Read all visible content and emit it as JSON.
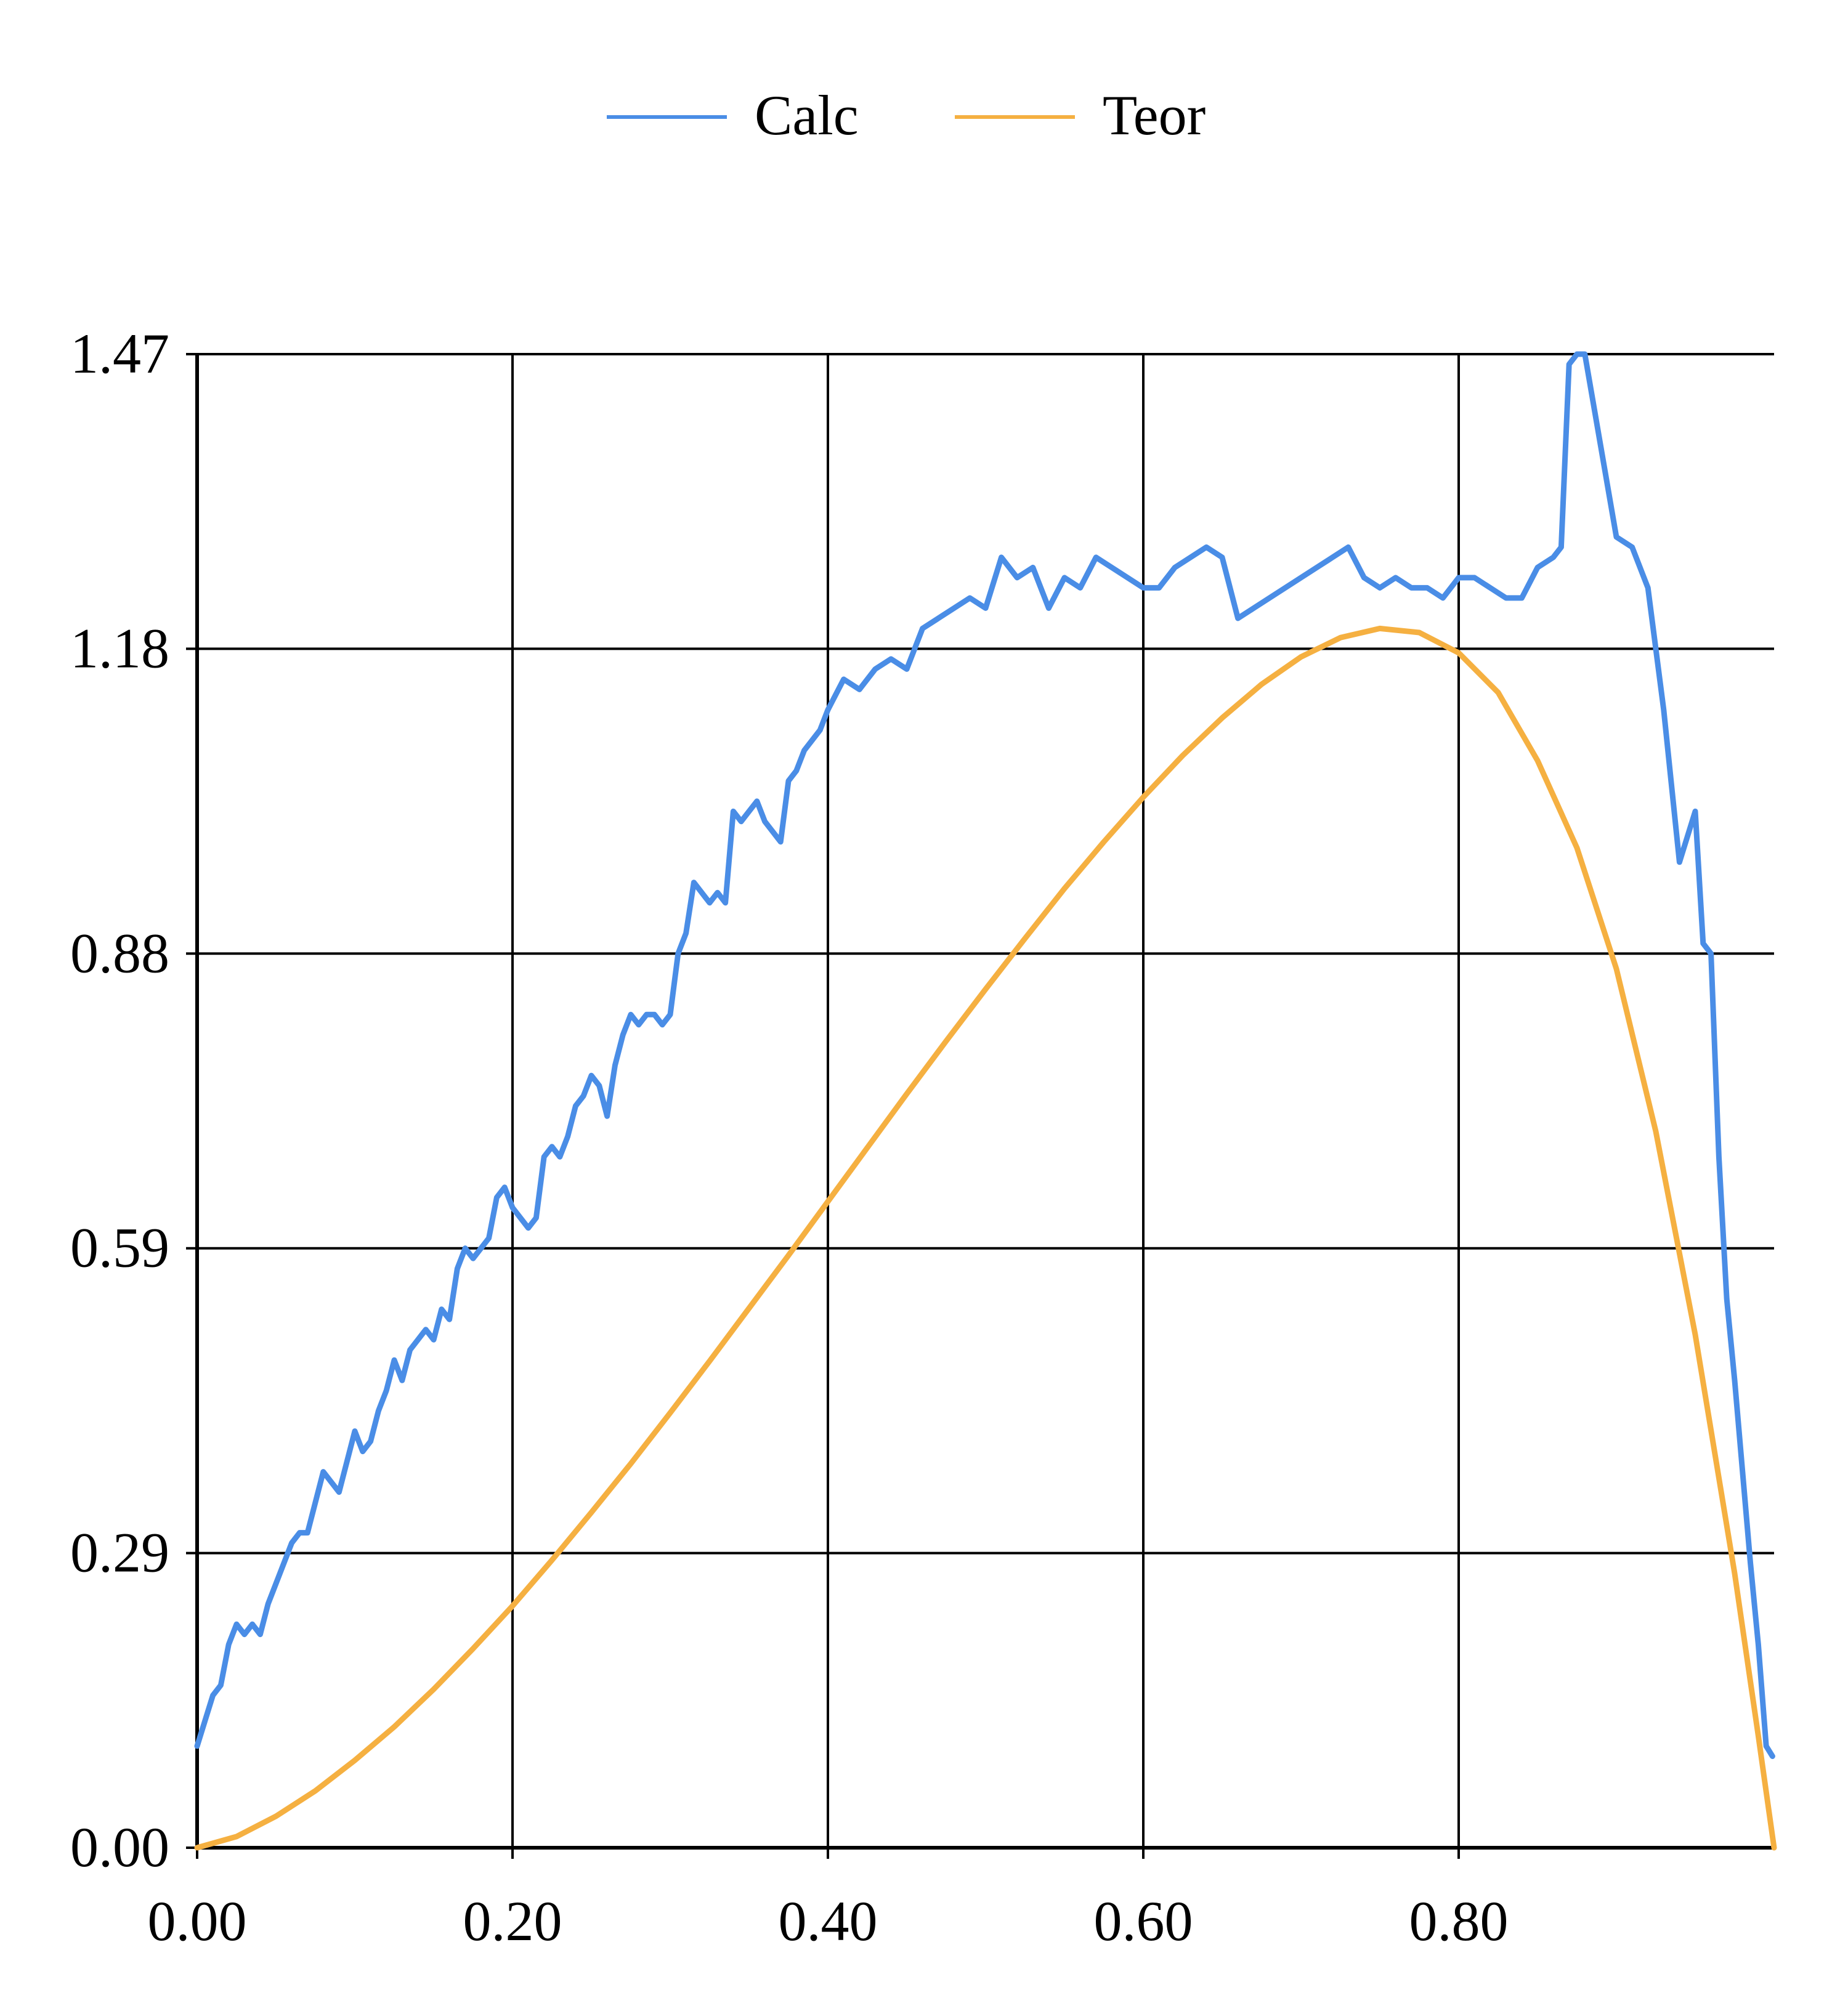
{
  "chart_data": {
    "type": "line",
    "title": "",
    "xlabel": "",
    "ylabel": "",
    "xlim": [
      0,
      1.0
    ],
    "ylim": [
      0,
      1.47
    ],
    "x_ticks": [
      0.0,
      0.2,
      0.4,
      0.6,
      0.8
    ],
    "x_tick_labels": [
      "0.00",
      "0.20",
      "0.40",
      "0.60",
      "0.80"
    ],
    "y_ticks": [
      0.0,
      0.29,
      0.59,
      0.88,
      1.18,
      1.47
    ],
    "y_tick_labels": [
      "0.00",
      "0.29",
      "0.59",
      "0.88",
      "1.18",
      "1.47"
    ],
    "grid": true,
    "legend_position": "top-center",
    "series": [
      {
        "name": "Calc",
        "color": "#4a8de6",
        "x": [
          0.0,
          0.01,
          0.015,
          0.02,
          0.025,
          0.03,
          0.035,
          0.04,
          0.045,
          0.05,
          0.055,
          0.06,
          0.065,
          0.07,
          0.075,
          0.08,
          0.085,
          0.09,
          0.095,
          0.1,
          0.105,
          0.11,
          0.115,
          0.12,
          0.125,
          0.13,
          0.135,
          0.14,
          0.145,
          0.15,
          0.155,
          0.16,
          0.165,
          0.17,
          0.175,
          0.18,
          0.185,
          0.19,
          0.195,
          0.2,
          0.205,
          0.21,
          0.215,
          0.22,
          0.225,
          0.23,
          0.235,
          0.24,
          0.245,
          0.25,
          0.255,
          0.26,
          0.265,
          0.27,
          0.275,
          0.28,
          0.285,
          0.29,
          0.295,
          0.3,
          0.305,
          0.31,
          0.315,
          0.32,
          0.325,
          0.33,
          0.335,
          0.34,
          0.345,
          0.35,
          0.355,
          0.36,
          0.365,
          0.37,
          0.375,
          0.38,
          0.385,
          0.39,
          0.395,
          0.4,
          0.41,
          0.42,
          0.43,
          0.44,
          0.45,
          0.46,
          0.47,
          0.48,
          0.49,
          0.5,
          0.51,
          0.52,
          0.53,
          0.54,
          0.55,
          0.56,
          0.57,
          0.58,
          0.59,
          0.6,
          0.61,
          0.62,
          0.63,
          0.64,
          0.65,
          0.66,
          0.67,
          0.68,
          0.69,
          0.7,
          0.71,
          0.72,
          0.73,
          0.74,
          0.75,
          0.76,
          0.77,
          0.78,
          0.79,
          0.8,
          0.81,
          0.82,
          0.83,
          0.84,
          0.85,
          0.86,
          0.865,
          0.87,
          0.875,
          0.88,
          0.89,
          0.9,
          0.91,
          0.92,
          0.93,
          0.94,
          0.95,
          0.955,
          0.96,
          0.965,
          0.97,
          0.975,
          0.98,
          0.985,
          0.99,
          0.995,
          0.999
        ],
        "values": [
          0.1,
          0.15,
          0.16,
          0.2,
          0.22,
          0.21,
          0.22,
          0.21,
          0.24,
          0.26,
          0.28,
          0.3,
          0.31,
          0.31,
          0.34,
          0.37,
          0.36,
          0.35,
          0.38,
          0.41,
          0.39,
          0.4,
          0.43,
          0.45,
          0.48,
          0.46,
          0.49,
          0.5,
          0.51,
          0.5,
          0.53,
          0.52,
          0.57,
          0.59,
          0.58,
          0.59,
          0.6,
          0.64,
          0.65,
          0.63,
          0.62,
          0.61,
          0.62,
          0.68,
          0.69,
          0.68,
          0.7,
          0.73,
          0.74,
          0.76,
          0.75,
          0.72,
          0.77,
          0.8,
          0.82,
          0.81,
          0.82,
          0.82,
          0.81,
          0.82,
          0.88,
          0.9,
          0.95,
          0.94,
          0.93,
          0.94,
          0.93,
          1.02,
          1.01,
          1.02,
          1.03,
          1.01,
          1.0,
          0.99,
          1.05,
          1.06,
          1.08,
          1.09,
          1.1,
          1.12,
          1.15,
          1.14,
          1.16,
          1.17,
          1.16,
          1.2,
          1.21,
          1.22,
          1.23,
          1.22,
          1.27,
          1.25,
          1.26,
          1.22,
          1.25,
          1.24,
          1.27,
          1.26,
          1.25,
          1.24,
          1.24,
          1.26,
          1.27,
          1.28,
          1.27,
          1.21,
          1.22,
          1.23,
          1.24,
          1.25,
          1.26,
          1.27,
          1.28,
          1.25,
          1.24,
          1.25,
          1.24,
          1.24,
          1.23,
          1.25,
          1.25,
          1.24,
          1.23,
          1.23,
          1.26,
          1.27,
          1.28,
          1.46,
          1.47,
          1.47,
          1.38,
          1.29,
          1.28,
          1.24,
          1.12,
          0.97,
          1.02,
          0.89,
          0.88,
          0.68,
          0.54,
          0.46,
          0.37,
          0.28,
          0.2,
          0.1,
          0.09
        ]
      },
      {
        "name": "Teor",
        "color": "#f5b041",
        "x": [
          0.0,
          0.025,
          0.05,
          0.075,
          0.1,
          0.125,
          0.15,
          0.175,
          0.2,
          0.225,
          0.25,
          0.275,
          0.3,
          0.325,
          0.35,
          0.375,
          0.4,
          0.425,
          0.45,
          0.475,
          0.5,
          0.525,
          0.55,
          0.575,
          0.6,
          0.625,
          0.65,
          0.675,
          0.7,
          0.725,
          0.75,
          0.775,
          0.8,
          0.825,
          0.85,
          0.875,
          0.9,
          0.925,
          0.95,
          0.975,
          0.99,
          1.0
        ],
        "values": [
          0.0,
          0.011,
          0.031,
          0.056,
          0.086,
          0.119,
          0.156,
          0.196,
          0.238,
          0.283,
          0.33,
          0.378,
          0.428,
          0.479,
          0.531,
          0.583,
          0.636,
          0.689,
          0.742,
          0.794,
          0.845,
          0.895,
          0.944,
          0.99,
          1.034,
          1.075,
          1.112,
          1.145,
          1.172,
          1.191,
          1.2,
          1.196,
          1.176,
          1.137,
          1.07,
          0.984,
          0.865,
          0.705,
          0.505,
          0.27,
          0.11,
          0.0
        ]
      }
    ]
  }
}
